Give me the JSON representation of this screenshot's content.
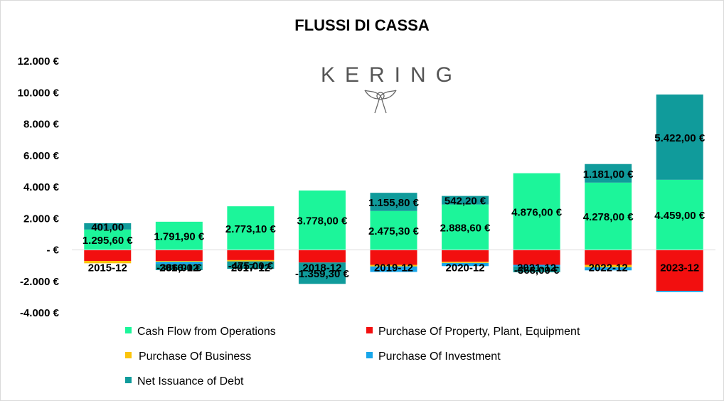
{
  "chart_data": {
    "type": "bar",
    "stacked": true,
    "title": "FLUSSI DI CASSA",
    "logo_text": "KERING",
    "categories": [
      "2015-12",
      "2016-12",
      "2017-12",
      "2018-12",
      "2019-12",
      "2020-12",
      "2021-12",
      "2022-12",
      "2023-12"
    ],
    "ylim": [
      -4000,
      12000
    ],
    "yticks": [
      12000,
      10000,
      8000,
      6000,
      4000,
      2000,
      0,
      -2000,
      -4000
    ],
    "ytick_labels": [
      "12.000 €",
      "10.000 €",
      "8.000 €",
      "6.000 €",
      "4.000 €",
      "2.000 €",
      "- €",
      "-2.000 €",
      "-4.000 €"
    ],
    "grid": false,
    "legend_position": "bottom",
    "series": [
      {
        "name": "Cash Flow from Operations",
        "color": "#1CF59A",
        "values": [
          1295.6,
          1791.9,
          2773.1,
          3778.0,
          2475.3,
          2888.6,
          4876.0,
          4278.0,
          4459.0
        ],
        "labels": [
          "1.295,60 €",
          "1.791,90 €",
          "2.773,10 €",
          "3.778,00 €",
          "2.475,30 €",
          "2.888,60 €",
          "4.876,00 €",
          "4.278,00 €",
          "4.459,00 €"
        ]
      },
      {
        "name": "Purchase Of Property, Plant, Equipment",
        "color": "#F20F0F",
        "values": [
          -700,
          -700,
          -650,
          -800,
          -950,
          -750,
          -950,
          -950,
          -2600
        ],
        "labels": [
          "",
          "",
          "",
          "",
          "",
          "",
          "",
          "",
          ""
        ]
      },
      {
        "name": "Purchase Of Business",
        "color": "#FBC40B",
        "values": [
          -150,
          -50,
          -80,
          0,
          -100,
          -80,
          0,
          -150,
          0
        ],
        "labels": [
          "",
          "",
          "",
          "",
          "",
          "",
          "",
          "",
          ""
        ]
      },
      {
        "name": "Purchase Of Investment",
        "color": "#18A6EA",
        "values": [
          0,
          -150,
          0,
          0,
          -350,
          -200,
          -100,
          -200,
          -80
        ],
        "labels": [
          "",
          "",
          "",
          "",
          "",
          "",
          "",
          "",
          ""
        ]
      },
      {
        "name": "Net Issuance of Debt",
        "color": "#109B9B",
        "values": [
          401.0,
          -386.0,
          -475.0,
          -1359.3,
          1155.8,
          542.2,
          -368.0,
          1181.0,
          5422.0
        ],
        "labels": [
          "401,00",
          "-386,00 €",
          "-475,00 €",
          "-1.359,30 €",
          "1.155,80 €",
          "542,20 €",
          "-368,00 €",
          "1.181,00 €",
          "5.422,00 €"
        ]
      }
    ]
  }
}
